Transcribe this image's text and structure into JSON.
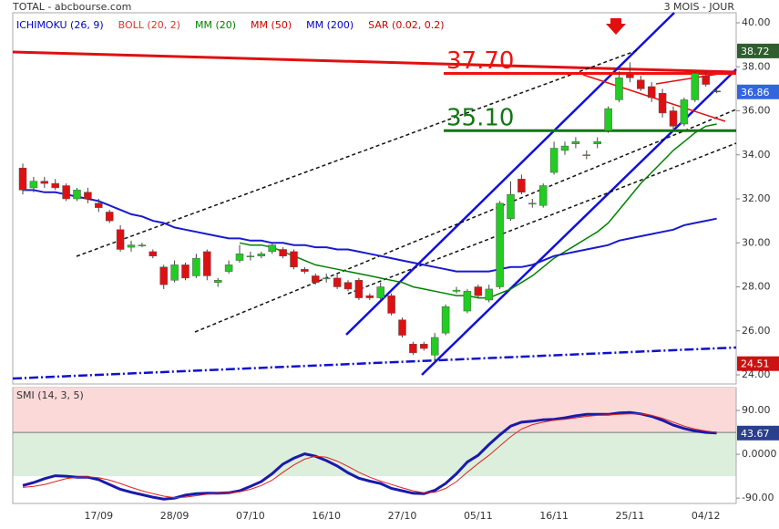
{
  "header": {
    "source": "TOTAL - abcbourse.com",
    "period": "3 MOIS - JOUR"
  },
  "chart_data": [
    {
      "type": "candlestick",
      "legend": [
        {
          "name": "ICHIMOKU (26, 9)",
          "color": "#0000cc"
        },
        {
          "name": "BOLL (20, 2)",
          "color": "#e03030"
        },
        {
          "name": "MM (20)",
          "color": "#008000"
        },
        {
          "name": "MM (50)",
          "color": "#cc0000"
        },
        {
          "name": "MM (200)",
          "color": "#0000cc"
        },
        {
          "name": "SAR (0.02, 0.2)",
          "color": "#cc0000"
        }
      ],
      "categories": [
        null,
        null,
        null,
        null,
        null,
        null,
        null,
        "17/09",
        null,
        null,
        null,
        null,
        null,
        null,
        "28/09",
        null,
        null,
        null,
        null,
        null,
        null,
        "07/10",
        null,
        null,
        null,
        null,
        null,
        null,
        "16/10",
        null,
        null,
        null,
        null,
        null,
        null,
        "27/10",
        null,
        null,
        null,
        null,
        null,
        null,
        "05/11",
        null,
        null,
        null,
        null,
        null,
        null,
        "16/11",
        null,
        null,
        null,
        null,
        null,
        null,
        "25/11",
        null,
        null,
        null,
        null,
        null,
        null,
        "04/12",
        null
      ],
      "open": [
        33.4,
        32.5,
        32.8,
        32.7,
        32.6,
        32.0,
        32.3,
        31.8,
        31.4,
        30.6,
        29.8,
        29.9,
        29.6,
        28.9,
        28.3,
        29.0,
        28.5,
        29.6,
        28.2,
        28.7,
        29.2,
        29.4,
        29.4,
        29.6,
        29.7,
        29.6,
        28.8,
        28.5,
        28.4,
        28.4,
        28.2,
        28.3,
        27.6,
        27.5,
        27.6,
        26.5,
        25.4,
        25.4,
        24.9,
        25.9,
        27.8,
        26.9,
        28.0,
        27.4,
        28.0,
        31.1,
        32.9,
        31.8,
        31.7,
        33.2,
        34.2,
        34.5,
        34.0,
        34.5,
        35.1,
        36.5,
        37.7,
        37.4,
        37.1,
        36.8,
        36.0,
        35.4,
        36.5,
        37.6,
        36.9
      ],
      "high": [
        33.6,
        33.0,
        33.0,
        32.9,
        32.7,
        32.5,
        32.5,
        32.0,
        31.5,
        30.8,
        30.1,
        30.0,
        29.7,
        29.0,
        29.2,
        29.1,
        29.5,
        29.7,
        28.4,
        29.2,
        29.9,
        29.6,
        29.6,
        30.0,
        29.8,
        29.7,
        28.9,
        28.6,
        28.6,
        28.6,
        28.3,
        28.4,
        27.7,
        28.2,
        27.7,
        26.6,
        25.5,
        25.5,
        25.9,
        27.2,
        28.0,
        27.9,
        28.1,
        28.1,
        31.9,
        32.8,
        33.1,
        32.0,
        32.7,
        34.6,
        34.6,
        34.8,
        34.2,
        34.8,
        36.2,
        37.8,
        38.2,
        37.6,
        37.3,
        37.0,
        36.2,
        36.6,
        37.8,
        37.8,
        37.0
      ],
      "low": [
        32.2,
        32.3,
        32.5,
        32.4,
        31.9,
        31.9,
        31.8,
        31.4,
        30.9,
        29.6,
        29.6,
        29.8,
        29.3,
        27.9,
        28.2,
        28.3,
        28.4,
        28.3,
        28.0,
        28.6,
        29.1,
        29.2,
        29.3,
        29.5,
        29.3,
        28.8,
        28.6,
        28.1,
        28.2,
        27.9,
        27.8,
        27.4,
        27.4,
        27.4,
        26.7,
        25.7,
        24.9,
        25.1,
        24.6,
        25.8,
        27.7,
        26.8,
        27.5,
        27.3,
        27.9,
        31.0,
        32.2,
        31.6,
        31.6,
        33.1,
        34.0,
        34.3,
        33.8,
        34.3,
        35.0,
        36.4,
        37.3,
        36.9,
        36.4,
        35.7,
        35.1,
        35.3,
        36.4,
        37.1,
        36.8
      ],
      "close": [
        32.4,
        32.8,
        32.7,
        32.5,
        32.0,
        32.4,
        32.0,
        31.6,
        31.0,
        29.7,
        29.9,
        29.9,
        29.4,
        28.1,
        29.0,
        28.4,
        29.3,
        28.5,
        28.3,
        29.0,
        29.5,
        29.4,
        29.5,
        29.9,
        29.4,
        28.9,
        28.7,
        28.2,
        28.4,
        28.0,
        27.9,
        27.5,
        27.5,
        28.0,
        26.8,
        25.8,
        25.0,
        25.2,
        25.7,
        27.1,
        27.85,
        27.8,
        27.6,
        27.9,
        31.8,
        32.2,
        32.3,
        31.8,
        32.6,
        34.3,
        34.4,
        34.6,
        34.0,
        34.6,
        36.1,
        37.5,
        37.5,
        37.0,
        36.6,
        35.9,
        35.3,
        36.5,
        37.7,
        37.2,
        36.86
      ],
      "up_color": "#22cc22",
      "down_color": "#dd1111",
      "lines": [
        {
          "color": "#008000",
          "width": 1.5,
          "values": [
            null,
            null,
            null,
            null,
            null,
            null,
            null,
            null,
            null,
            null,
            null,
            null,
            null,
            null,
            null,
            null,
            null,
            null,
            null,
            null,
            30.0,
            29.9,
            29.9,
            29.8,
            29.6,
            29.4,
            29.2,
            29.0,
            28.9,
            28.8,
            28.7,
            28.6,
            28.5,
            28.4,
            28.3,
            28.2,
            28.0,
            27.9,
            27.8,
            27.7,
            27.6,
            27.6,
            27.5,
            27.5,
            27.7,
            27.9,
            28.2,
            28.5,
            28.9,
            29.3,
            29.6,
            29.9,
            30.2,
            30.5,
            30.9,
            31.5,
            32.1,
            32.7,
            33.2,
            33.7,
            34.2,
            34.6,
            35.0,
            35.3,
            35.4
          ]
        },
        {
          "color": "#1a1acc",
          "width": 2,
          "values": [
            32.4,
            32.4,
            32.3,
            32.3,
            32.2,
            32.1,
            32.0,
            31.9,
            31.7,
            31.5,
            31.3,
            31.2,
            31.0,
            30.9,
            30.7,
            30.6,
            30.5,
            30.4,
            30.3,
            30.2,
            30.2,
            30.1,
            30.1,
            30.0,
            30.0,
            29.9,
            29.9,
            29.8,
            29.8,
            29.7,
            29.7,
            29.6,
            29.5,
            29.4,
            29.3,
            29.2,
            29.1,
            29.0,
            28.9,
            28.8,
            28.7,
            28.7,
            28.7,
            28.7,
            28.8,
            28.9,
            28.9,
            29.0,
            29.2,
            29.4,
            29.5,
            29.6,
            29.7,
            29.8,
            29.9,
            30.1,
            30.2,
            30.3,
            30.4,
            30.5,
            30.6,
            30.8,
            30.9,
            31.0,
            31.1
          ]
        }
      ],
      "levels": [
        {
          "value": 37.7,
          "label": "37.70",
          "color": "#ee1111"
        },
        {
          "value": 35.1,
          "label": "35.10",
          "color": "#117711"
        }
      ],
      "price_labels": [
        {
          "value": 38.72,
          "label": "38.72",
          "color": "#2f5e2f"
        },
        {
          "value": 36.86,
          "label": "36.86",
          "color": "#3366dd"
        },
        {
          "value": 24.51,
          "label": "24.51",
          "color": "#cc1111"
        }
      ],
      "ylim": [
        24,
        40
      ],
      "yticks": [
        {
          "value": 24,
          "label": "24.00"
        },
        {
          "value": 26,
          "label": "26.00"
        },
        {
          "value": 28,
          "label": "28.00"
        },
        {
          "value": 30,
          "label": "30.00"
        },
        {
          "value": 32,
          "label": "32.00"
        },
        {
          "value": 34,
          "label": "34.00"
        },
        {
          "value": 36,
          "label": "36.00"
        },
        {
          "value": 38,
          "label": "38.00"
        },
        {
          "value": 40,
          "label": "40.00"
        }
      ]
    },
    {
      "type": "line",
      "title": "SMI (14, 3, 5)",
      "series": [
        {
          "color": "#1a1aaa",
          "width": 3,
          "values": [
            -64,
            -58,
            -50,
            -44,
            -45,
            -47,
            -47,
            -52,
            -62,
            -72,
            -78,
            -83,
            -88,
            -92,
            -90,
            -84,
            -81,
            -80,
            -80,
            -79,
            -75,
            -66,
            -56,
            -40,
            -20,
            -8,
            1,
            -4,
            -13,
            -24,
            -38,
            -49,
            -55,
            -60,
            -70,
            -75,
            -80,
            -81,
            -74,
            -60,
            -40,
            -16,
            -2,
            20,
            40,
            58,
            66,
            68,
            71,
            72,
            75,
            79,
            82,
            82,
            82,
            85,
            86,
            83,
            78,
            70,
            60,
            53,
            48,
            45,
            43.67
          ]
        },
        {
          "color": "#dd2222",
          "width": 1,
          "values": [
            -68,
            -66,
            -62,
            -56,
            -50,
            -47,
            -46,
            -48,
            -53,
            -60,
            -68,
            -75,
            -81,
            -86,
            -89,
            -88,
            -85,
            -82,
            -80,
            -79,
            -77,
            -72,
            -64,
            -53,
            -37,
            -22,
            -10,
            -4,
            -6,
            -14,
            -25,
            -37,
            -47,
            -55,
            -62,
            -69,
            -75,
            -79,
            -78,
            -70,
            -56,
            -37,
            -19,
            -2,
            17,
            36,
            52,
            61,
            66,
            70,
            72,
            75,
            78,
            80,
            81,
            82,
            83,
            83,
            80,
            74,
            66,
            58,
            52,
            48,
            45
          ]
        }
      ],
      "zones": [
        {
          "from": 45,
          "to": 137,
          "color": "#fbd9d9"
        },
        {
          "from": -45,
          "to": 45,
          "color": "#dcefdc"
        }
      ],
      "last_label": {
        "value": 43.67,
        "label": "43.67",
        "color": "#2a3f8f"
      },
      "ylim": [
        -101,
        137
      ],
      "yticks": [
        {
          "value": -90,
          "label": "-90.00"
        },
        {
          "value": 0,
          "label": "0.0000"
        },
        {
          "value": 90,
          "label": "90.00"
        }
      ]
    }
  ]
}
